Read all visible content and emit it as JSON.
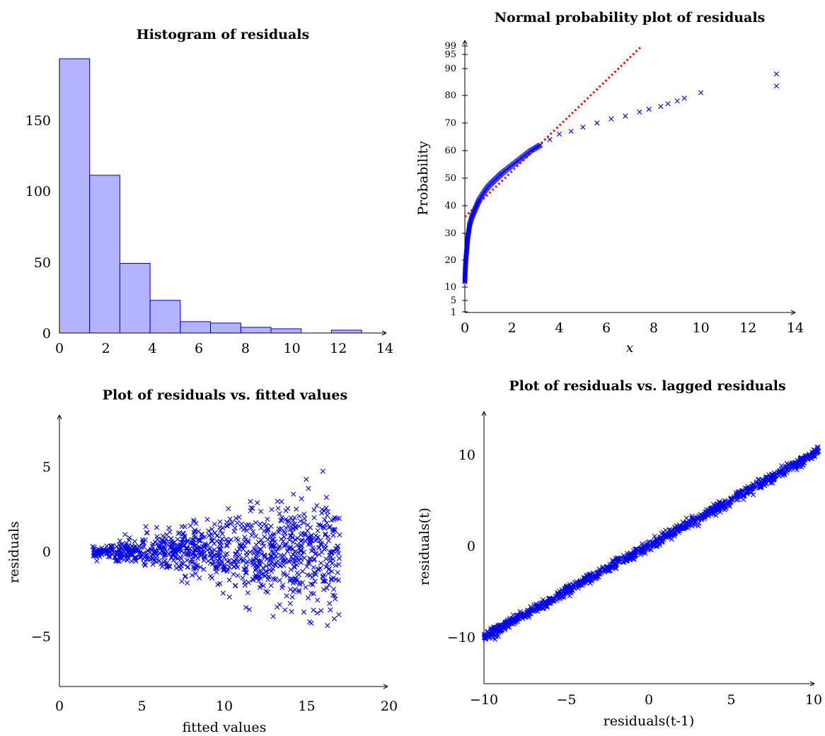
{
  "chart_data": [
    {
      "id": "hist",
      "type": "bar",
      "title": "Histogram of residuals",
      "xlabel": "",
      "ylabel": "",
      "xlim": [
        0,
        14
      ],
      "ylim": [
        0,
        195
      ],
      "xticks": [
        "0",
        "2",
        "4",
        "6",
        "8",
        "10",
        "12",
        "14"
      ],
      "yticks": [
        "0",
        "50",
        "100",
        "150"
      ],
      "bin_edges": [
        0,
        1.3,
        2.6,
        3.9,
        5.2,
        6.5,
        7.8,
        9.1,
        10.4,
        11.7,
        13.0
      ],
      "values": [
        193,
        111,
        49,
        23,
        8,
        7,
        4,
        3,
        0,
        2
      ]
    },
    {
      "id": "normprob",
      "type": "scatter",
      "title": "Normal probability plot of residuals",
      "xlabel": "x",
      "ylabel": "Probability",
      "xlim": [
        0,
        14
      ],
      "xticks": [
        "0",
        "2",
        "4",
        "6",
        "8",
        "10",
        "12",
        "14"
      ],
      "yticks": [
        "1",
        "5",
        "10",
        "20",
        "30",
        "40",
        "50",
        "60",
        "70",
        "80",
        "90",
        "95",
        "99"
      ],
      "reference_line": {
        "style": "red dotted",
        "from": [
          0,
          36
        ],
        "to": [
          7.5,
          99
        ]
      },
      "points": [
        [
          0,
          12
        ],
        [
          0.02,
          17
        ],
        [
          0.04,
          20
        ],
        [
          0.07,
          23
        ],
        [
          0.1,
          26
        ],
        [
          0.13,
          29
        ],
        [
          0.17,
          31
        ],
        [
          0.2,
          33
        ],
        [
          0.3,
          36
        ],
        [
          0.4,
          38
        ],
        [
          0.5,
          40
        ],
        [
          0.6,
          42
        ],
        [
          0.75,
          44
        ],
        [
          0.9,
          46
        ],
        [
          1.1,
          48
        ],
        [
          1.35,
          50
        ],
        [
          1.6,
          52
        ],
        [
          1.9,
          54
        ],
        [
          2.2,
          56
        ],
        [
          2.5,
          58
        ],
        [
          2.8,
          60
        ],
        [
          3.2,
          62
        ],
        [
          3.6,
          64
        ],
        [
          4.0,
          66
        ],
        [
          4.5,
          67
        ],
        [
          5.0,
          68.5
        ],
        [
          5.6,
          70
        ],
        [
          6.2,
          71.5
        ],
        [
          6.8,
          72.5
        ],
        [
          7.4,
          74
        ],
        [
          7.8,
          75
        ],
        [
          8.3,
          76
        ],
        [
          8.6,
          77
        ],
        [
          9.0,
          78
        ],
        [
          9.3,
          79
        ],
        [
          10.0,
          81
        ],
        [
          13.2,
          83.5
        ],
        [
          13.2,
          88
        ]
      ]
    },
    {
      "id": "resfit",
      "type": "scatter",
      "title": "Plot of residuals vs. fitted values",
      "xlabel": "fitted values",
      "ylabel": "residuals",
      "xlim": [
        0,
        20
      ],
      "ylim": [
        -8,
        8
      ],
      "xticks": [
        "0",
        "5",
        "10",
        "15",
        "20"
      ],
      "yticks": [
        "−5",
        "0",
        "5"
      ],
      "x_range": [
        2,
        17
      ],
      "residual_spread": "increases with fitted value, roughly ±0.3 at 2 to about ±5 at 17",
      "n_points": 1000
    },
    {
      "id": "lag",
      "type": "scatter",
      "title": "Plot of residuals vs. lagged residuals",
      "xlabel": "residuals(t-1)",
      "ylabel": "residuals(t)",
      "xlim": [
        -10,
        10
      ],
      "ylim": [
        -15,
        14.5
      ],
      "xticks": [
        "−10",
        "−5",
        "0",
        "5",
        "10"
      ],
      "yticks": [
        "−10",
        "0",
        "10"
      ],
      "relation": "residuals(t) ≈ residuals(t-1), tight band of about ±0.3",
      "n_points": 1000
    }
  ]
}
